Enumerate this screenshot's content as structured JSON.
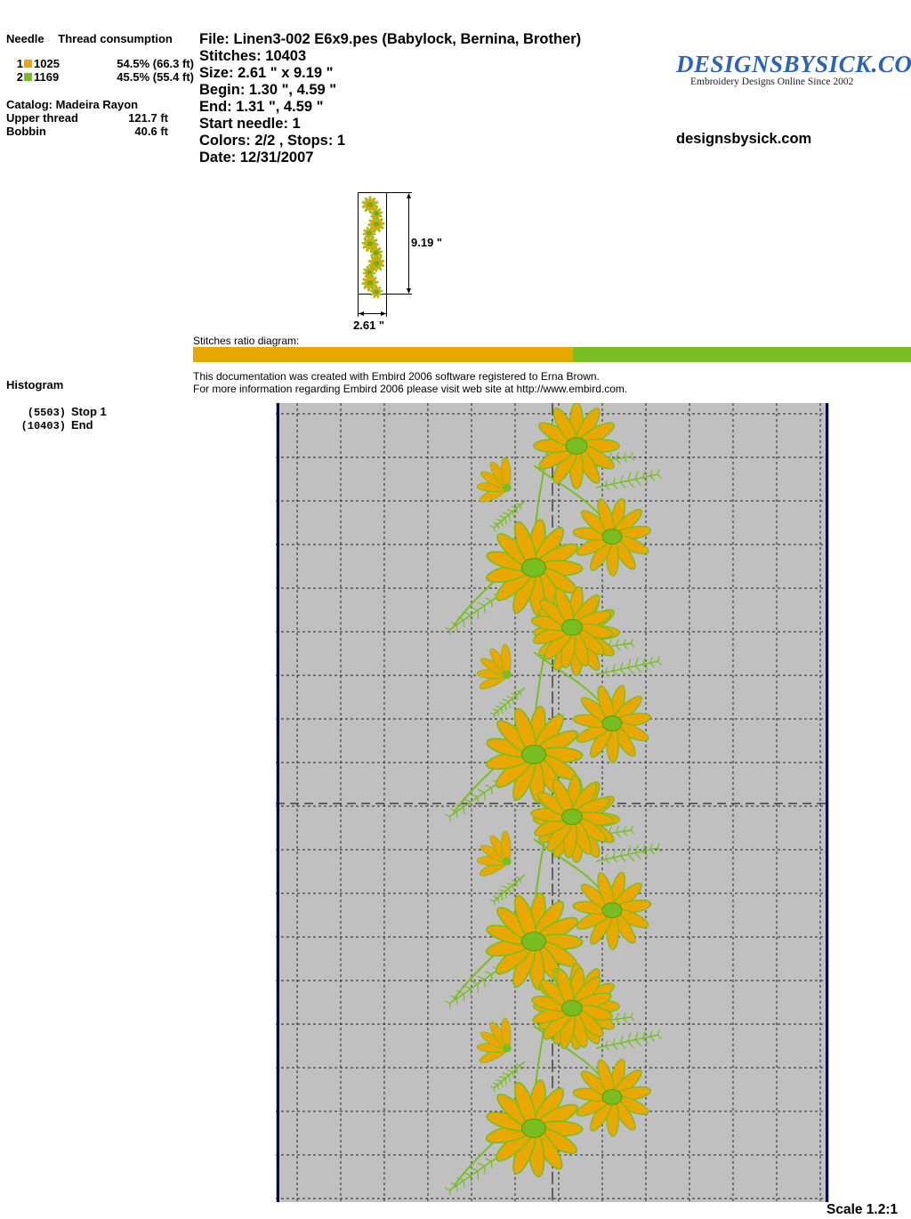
{
  "left": {
    "header": {
      "needle": "Needle",
      "thread": "Thread consumption"
    },
    "threads": [
      {
        "needle": "1",
        "code": "1025",
        "pct": "54.5% (66.3 ft)",
        "color": "#e8a800"
      },
      {
        "needle": "2",
        "code": "1169",
        "pct": "45.5% (55.4 ft)",
        "color": "#78be20"
      }
    ],
    "catalog": "Catalog: Madeira Rayon",
    "upper_label": "Upper thread",
    "upper_value": "121.7 ft",
    "bobbin_label": "Bobbin",
    "bobbin_value": "40.6 ft",
    "histogram_title": "Histogram",
    "histogram": [
      {
        "count": "(5503)",
        "label": "Stop 1"
      },
      {
        "count": "(10403)",
        "label": "End"
      }
    ]
  },
  "info": {
    "file": "File: Linen3-002 E6x9.pes  (Babylock, Bernina, Brother)",
    "stitches": "Stitches: 10403",
    "size": "Size: 2.61 \" x 9.19 \"",
    "begin": "Begin: 1.30 \", 4.59 \"",
    "end": "End: 1.31 \", 4.59 \"",
    "start_needle": "Start needle: 1",
    "colors": "Colors: 2/2 , Stops: 1",
    "date": "Date: 12/31/2007"
  },
  "logo": {
    "title": "DESIGNSBYSICK.COM",
    "subtitle": "Embroidery Designs Online Since 2002"
  },
  "site": "designsbysick.com",
  "thumbnail": {
    "height_label": "9.19 \"",
    "width_label": "2.61 \""
  },
  "ratio": {
    "label": "Stitches ratio diagram:",
    "segments": [
      {
        "fraction": 0.529,
        "color": "#e8a800"
      },
      {
        "fraction": 0.471,
        "color": "#78be20"
      }
    ]
  },
  "note": {
    "line1": "This documentation was created with Embird 2006 software registered to Erna Brown.",
    "line2": "For more information regarding Embird 2006 please visit web site at http://www.embird.com."
  },
  "colors": {
    "gold": "#e8a800",
    "green": "#78be20",
    "grid_bg": "#c0c0c0",
    "frame": "#000060"
  },
  "scale": "Scale 1.2:1"
}
